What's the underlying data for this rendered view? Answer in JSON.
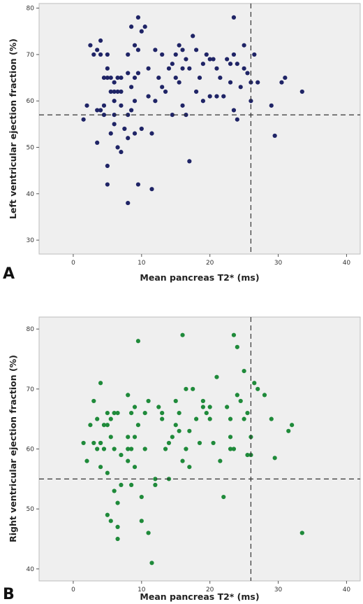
{
  "chart_data": [
    {
      "type": "scatter",
      "panel_label": "A",
      "xlabel": "Mean pancreas T2* (ms)",
      "ylabel": "Left  ventricular ejection fraction (%)",
      "xlim": [
        -5,
        42
      ],
      "ylim": [
        27,
        81
      ],
      "xticks": [
        0,
        10,
        20,
        30,
        40
      ],
      "yticks": [
        30,
        40,
        50,
        60,
        70,
        80
      ],
      "grid": false,
      "ref_x": 26,
      "ref_y": 57,
      "point_color": "#1f2466",
      "points": [
        [
          1.5,
          56
        ],
        [
          2,
          59
        ],
        [
          2.5,
          72
        ],
        [
          3,
          70
        ],
        [
          3.5,
          71
        ],
        [
          3.5,
          58
        ],
        [
          3.5,
          51
        ],
        [
          4,
          73
        ],
        [
          4,
          70
        ],
        [
          4,
          58
        ],
        [
          4.5,
          65
        ],
        [
          4.5,
          59
        ],
        [
          4.5,
          57
        ],
        [
          5,
          70
        ],
        [
          5,
          67
        ],
        [
          5,
          65
        ],
        [
          5,
          46
        ],
        [
          5,
          42
        ],
        [
          5.5,
          65
        ],
        [
          5.5,
          62
        ],
        [
          5.5,
          53
        ],
        [
          6,
          64
        ],
        [
          6,
          62
        ],
        [
          6,
          60
        ],
        [
          6,
          57
        ],
        [
          6,
          55
        ],
        [
          6.5,
          65
        ],
        [
          6.5,
          62
        ],
        [
          6.5,
          50
        ],
        [
          7,
          65
        ],
        [
          7,
          62
        ],
        [
          7,
          59
        ],
        [
          7,
          49
        ],
        [
          7.5,
          54
        ],
        [
          8,
          70
        ],
        [
          8,
          57
        ],
        [
          8,
          52
        ],
        [
          8,
          38
        ],
        [
          8.5,
          76
        ],
        [
          8.5,
          63
        ],
        [
          8.5,
          58
        ],
        [
          9,
          72
        ],
        [
          9,
          65
        ],
        [
          9,
          60
        ],
        [
          9,
          53
        ],
        [
          9.5,
          78
        ],
        [
          9.5,
          71
        ],
        [
          9.5,
          66
        ],
        [
          9.5,
          42
        ],
        [
          10,
          75
        ],
        [
          10,
          54
        ],
        [
          10.5,
          76
        ],
        [
          11,
          67
        ],
        [
          11,
          61
        ],
        [
          11.5,
          53
        ],
        [
          11.5,
          41
        ],
        [
          12,
          71
        ],
        [
          12,
          60
        ],
        [
          12.5,
          65
        ],
        [
          13,
          70
        ],
        [
          13,
          63
        ],
        [
          13.5,
          62
        ],
        [
          14,
          67
        ],
        [
          14.5,
          68
        ],
        [
          14.5,
          57
        ],
        [
          15,
          70
        ],
        [
          15,
          65
        ],
        [
          15.5,
          72
        ],
        [
          15.5,
          64
        ],
        [
          16,
          71
        ],
        [
          16,
          67
        ],
        [
          16,
          59
        ],
        [
          16.5,
          69
        ],
        [
          16.5,
          57
        ],
        [
          17,
          67
        ],
        [
          17,
          47
        ],
        [
          17.5,
          74
        ],
        [
          18,
          71
        ],
        [
          18,
          62
        ],
        [
          18.5,
          65
        ],
        [
          19,
          68
        ],
        [
          19,
          60
        ],
        [
          19.5,
          70
        ],
        [
          20,
          69
        ],
        [
          20,
          61
        ],
        [
          20.5,
          69
        ],
        [
          21,
          67
        ],
        [
          21,
          61
        ],
        [
          21.5,
          65
        ],
        [
          22,
          61
        ],
        [
          22.5,
          69
        ],
        [
          23,
          68
        ],
        [
          23,
          64
        ],
        [
          23.5,
          78
        ],
        [
          23.5,
          70
        ],
        [
          23.5,
          58
        ],
        [
          24,
          68
        ],
        [
          24,
          56
        ],
        [
          24.5,
          63
        ],
        [
          25,
          72
        ],
        [
          25,
          67
        ],
        [
          25.5,
          66
        ],
        [
          26,
          64
        ],
        [
          26,
          60
        ],
        [
          26.5,
          70
        ],
        [
          27,
          64
        ],
        [
          29,
          59
        ],
        [
          29.5,
          52.5
        ],
        [
          30.5,
          64
        ],
        [
          31,
          65
        ],
        [
          33.5,
          62
        ],
        [
          8,
          66
        ]
      ]
    },
    {
      "type": "scatter",
      "panel_label": "B",
      "xlabel": "Mean pancreas T2* (ms)",
      "ylabel": "Right ventricular ejection fraction (%)",
      "xlim": [
        -5,
        42
      ],
      "ylim": [
        38,
        82
      ],
      "xticks": [
        0,
        10,
        20,
        30,
        40
      ],
      "yticks": [
        40,
        50,
        60,
        70,
        80
      ],
      "grid": false,
      "ref_x": 26,
      "ref_y": 55,
      "point_color": "#1f8a3a",
      "points": [
        [
          1.5,
          61
        ],
        [
          2,
          58
        ],
        [
          2.5,
          64
        ],
        [
          3,
          68
        ],
        [
          3,
          61
        ],
        [
          3.5,
          60
        ],
        [
          3.5,
          65
        ],
        [
          4,
          71
        ],
        [
          4,
          61
        ],
        [
          4,
          57
        ],
        [
          4.5,
          64
        ],
        [
          4.5,
          60
        ],
        [
          5,
          66
        ],
        [
          5,
          64
        ],
        [
          5,
          56
        ],
        [
          5,
          49
        ],
        [
          5.5,
          65
        ],
        [
          5.5,
          62
        ],
        [
          5.5,
          48
        ],
        [
          6,
          66
        ],
        [
          6,
          60
        ],
        [
          6,
          53
        ],
        [
          6.5,
          66
        ],
        [
          6.5,
          51
        ],
        [
          6.5,
          47
        ],
        [
          6.5,
          45
        ],
        [
          7,
          54
        ],
        [
          7,
          59
        ],
        [
          8,
          69
        ],
        [
          8,
          62
        ],
        [
          8,
          60
        ],
        [
          8,
          58
        ],
        [
          8.5,
          66
        ],
        [
          8.5,
          60
        ],
        [
          8.5,
          54
        ],
        [
          9,
          67
        ],
        [
          9,
          62
        ],
        [
          9,
          57
        ],
        [
          9.5,
          78
        ],
        [
          9.5,
          64
        ],
        [
          10,
          52
        ],
        [
          10,
          48
        ],
        [
          10.5,
          66
        ],
        [
          10.5,
          60
        ],
        [
          11,
          68
        ],
        [
          11,
          46
        ],
        [
          11.5,
          41
        ],
        [
          12,
          55
        ],
        [
          12,
          54
        ],
        [
          12.5,
          67
        ],
        [
          13,
          66
        ],
        [
          13,
          65
        ],
        [
          14,
          55
        ],
        [
          14,
          61
        ],
        [
          14.5,
          62
        ],
        [
          15,
          64
        ],
        [
          15,
          68
        ],
        [
          15.5,
          63
        ],
        [
          15.5,
          66
        ],
        [
          16,
          58
        ],
        [
          16,
          79
        ],
        [
          16.5,
          70
        ],
        [
          16.5,
          60
        ],
        [
          17,
          57
        ],
        [
          17,
          63
        ],
        [
          17.5,
          70
        ],
        [
          18,
          65
        ],
        [
          18.5,
          61
        ],
        [
          19,
          68
        ],
        [
          19,
          67
        ],
        [
          19.5,
          66
        ],
        [
          20,
          67
        ],
        [
          20,
          65
        ],
        [
          20.5,
          61
        ],
        [
          21,
          72
        ],
        [
          21.5,
          58
        ],
        [
          22,
          52
        ],
        [
          22.5,
          67
        ],
        [
          23,
          65
        ],
        [
          23,
          62
        ],
        [
          23,
          60
        ],
        [
          23.5,
          79
        ],
        [
          23.5,
          60
        ],
        [
          24,
          77
        ],
        [
          24,
          69
        ],
        [
          24.5,
          68
        ],
        [
          25,
          73
        ],
        [
          25,
          65
        ],
        [
          25.5,
          59
        ],
        [
          25.5,
          66
        ],
        [
          26,
          62
        ],
        [
          26,
          59
        ],
        [
          26.5,
          71
        ],
        [
          27,
          70
        ],
        [
          28,
          69
        ],
        [
          29,
          65
        ],
        [
          29.5,
          58.5
        ],
        [
          31.5,
          63
        ],
        [
          32,
          64
        ],
        [
          33.5,
          46
        ],
        [
          13.5,
          60
        ],
        [
          4,
          61
        ]
      ]
    }
  ]
}
